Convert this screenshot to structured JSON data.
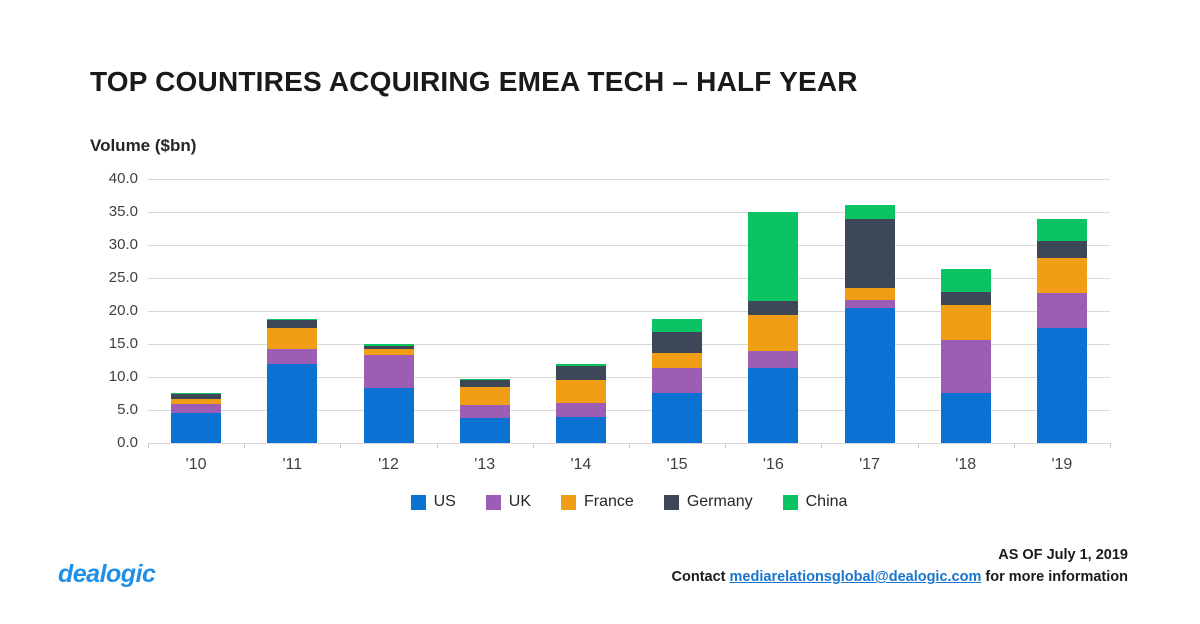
{
  "title": "TOP COUNTIRES ACQUIRING EMEA TECH – HALF YEAR",
  "axis_title": "Volume ($bn)",
  "footer": {
    "logo": "dealogic",
    "as_of": "AS OF July 1, 2019",
    "contact_prefix": "Contact ",
    "contact_email": "mediarelationsglobal@dealogic.com",
    "contact_suffix": " for more information"
  },
  "colors": {
    "us": "#0b72d4",
    "uk": "#9c5eb5",
    "france": "#f09e16",
    "germany": "#3e4757",
    "china": "#0ac463",
    "gridline": "#d9d9d9",
    "logo_blue": "#1f8fe8",
    "link_blue": "#1b75cf"
  },
  "chart_data": {
    "type": "bar",
    "stacked": true,
    "title": "TOP COUNTIRES ACQUIRING EMEA TECH – HALF YEAR",
    "ylabel": "Volume ($bn)",
    "xlabel": "",
    "ylim": [
      0,
      40
    ],
    "ytick_step": 5,
    "ytick_labels": [
      "0.0",
      "5.0",
      "10.0",
      "15.0",
      "20.0",
      "25.0",
      "30.0",
      "35.0",
      "40.0"
    ],
    "grid": true,
    "legend_position": "bottom",
    "categories": [
      "'10",
      "'11",
      "'12",
      "'13",
      "'14",
      "'15",
      "'16",
      "'17",
      "'18",
      "'19"
    ],
    "series": [
      {
        "name": "US",
        "color": "#0b72d4",
        "values": [
          4.5,
          12.0,
          8.3,
          3.8,
          4.0,
          7.6,
          11.4,
          20.5,
          7.6,
          17.5
        ]
      },
      {
        "name": "UK",
        "color": "#9c5eb5",
        "values": [
          1.4,
          2.3,
          5.1,
          1.9,
          2.0,
          3.7,
          2.5,
          1.2,
          8.0,
          5.3
        ]
      },
      {
        "name": "France",
        "color": "#f09e16",
        "values": [
          0.8,
          3.2,
          0.9,
          2.8,
          3.5,
          2.3,
          5.5,
          1.8,
          5.3,
          5.2
        ]
      },
      {
        "name": "Germany",
        "color": "#3e4757",
        "values": [
          0.7,
          1.1,
          0.4,
          1.0,
          2.2,
          3.2,
          2.1,
          10.5,
          2.0,
          2.6
        ]
      },
      {
        "name": "China",
        "color": "#0ac463",
        "values": [
          0.2,
          0.2,
          0.3,
          0.2,
          0.2,
          2.0,
          13.5,
          2.0,
          3.5,
          3.3
        ]
      }
    ],
    "totals": [
      7.6,
      18.8,
      15.0,
      9.7,
      11.9,
      18.8,
      35.0,
      36.0,
      26.4,
      33.9
    ]
  }
}
